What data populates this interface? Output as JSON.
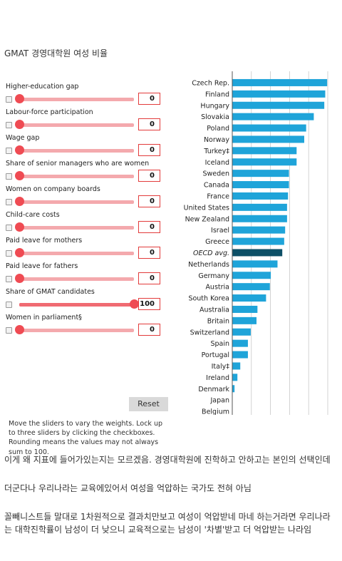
{
  "page": {
    "title": "GMAT 경영대학원 여성 비율"
  },
  "controls": [
    {
      "label": "Higher-education gap",
      "value": "0",
      "level": 0,
      "checked": false
    },
    {
      "label": "Labour-force participation",
      "value": "0",
      "level": 0,
      "checked": false
    },
    {
      "label": "Wage gap",
      "value": "0",
      "level": 0,
      "checked": false
    },
    {
      "label": "Share of senior managers who are women",
      "value": "0",
      "level": 0,
      "checked": false
    },
    {
      "label": "Women on company boards",
      "value": "0",
      "level": 0,
      "checked": false
    },
    {
      "label": "Child-care costs",
      "value": "0",
      "level": 0,
      "checked": false
    },
    {
      "label": "Paid leave for mothers",
      "value": "0",
      "level": 0,
      "checked": false
    },
    {
      "label": "Paid leave for fathers",
      "value": "0",
      "level": 0,
      "checked": false
    },
    {
      "label": "Share of GMAT candidates",
      "value": "100",
      "level": 1,
      "checked": false
    },
    {
      "label": "Women in parliament§",
      "value": "0",
      "level": 0,
      "checked": false
    }
  ],
  "note": "Move the sliders to vary the weights. Lock up to three sliders by clicking the checkboxes. Rounding means the values may not always sum to 100.",
  "reset_label": "Reset",
  "colors": {
    "slider_track": "#f4a9ad",
    "slider_knob": "#ef4b53",
    "bar": "#1fa4d9",
    "bar_highlight": "#0d4f66",
    "value_border": "#e23b3b"
  },
  "chart_data": {
    "type": "bar",
    "orientation": "horizontal",
    "categories": [
      "Czech Rep.",
      "Finland",
      "Hungary",
      "Slovakia",
      "Poland",
      "Norway",
      "Turkey‡",
      "Iceland",
      "Sweden",
      "Canada",
      "France",
      "United States",
      "New Zealand",
      "Israel",
      "Greece",
      "OECD avg.",
      "Netherlands",
      "Germany",
      "Austria",
      "South Korea",
      "Australia",
      "Britain",
      "Switzerland",
      "Spain",
      "Portugal",
      "Italy‡",
      "Ireland",
      "Denmark",
      "Japan",
      "Belgium"
    ],
    "values": [
      49.5,
      48.5,
      48,
      42.5,
      38.5,
      37.5,
      33.5,
      33.5,
      29.5,
      29.5,
      29,
      28.5,
      28.5,
      27.5,
      27,
      26,
      23.5,
      20,
      19.5,
      17.5,
      13,
      12.5,
      9.5,
      8,
      8,
      4,
      2.5,
      1,
      0,
      0
    ],
    "highlight": "OECD avg.",
    "xlim": [
      0,
      50
    ],
    "grid": true
  },
  "body_text": {
    "p1": "이게 왜 지표에 들어가있는지는 모르겠음. 경영대학원에 진학하고 안하고는 본인의 선택인데",
    "p2": "더군다나 우리나라는 교육에있어서 여성을 억압하는 국가도 전혀 아님",
    "p3": "꼴빼니스트들 말대로 1차원적으로 결과치만보고 여성이 억압받네 마네 하는거라면 우리나라는 대학진학률이 남성이 더 낮으니 교육적으로는 남성이 '차별'받고 더 억압받는 나라임"
  }
}
